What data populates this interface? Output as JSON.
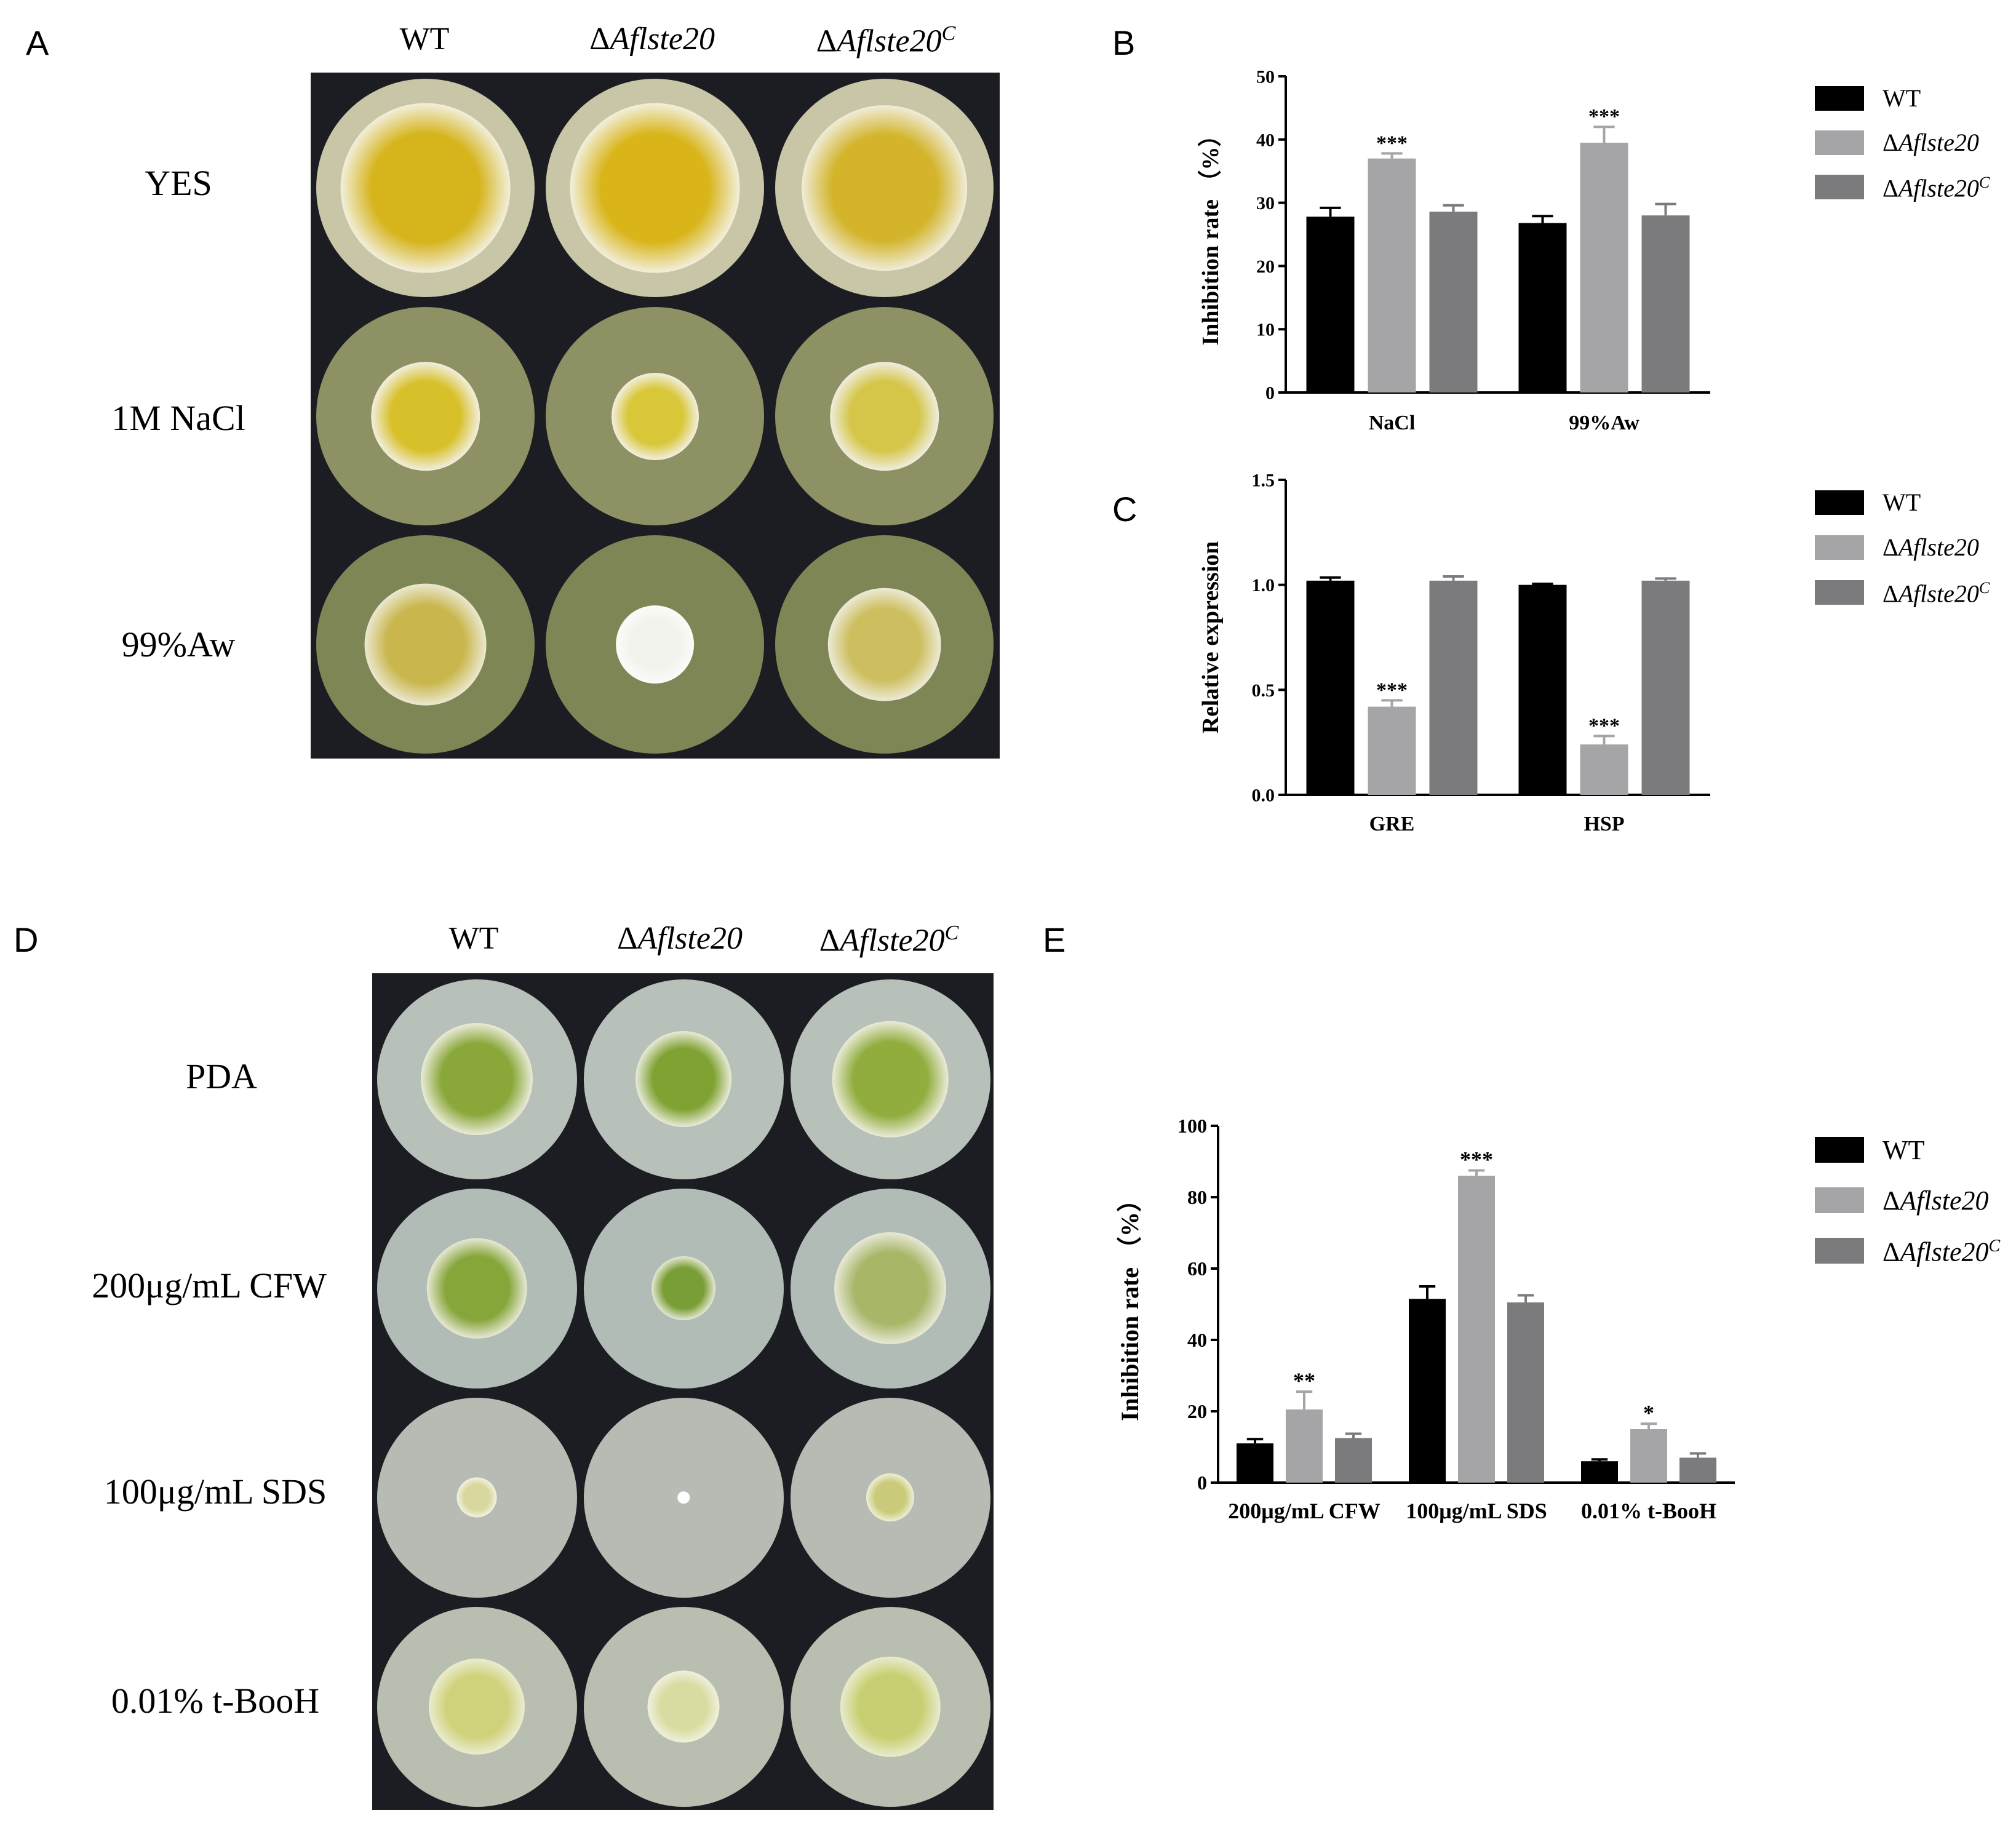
{
  "panels": {
    "A": {
      "letter": "A",
      "columns": [
        {
          "label_main": "WT",
          "label_super": ""
        },
        {
          "label_delta": "Δ",
          "label_italic": "Aflste20",
          "label_super": ""
        },
        {
          "label_delta": "Δ",
          "label_italic": "Aflste20",
          "label_super": "C"
        }
      ],
      "rows": [
        "YES",
        "1M NaCl",
        "99%Aw"
      ]
    },
    "D": {
      "letter": "D",
      "columns": [
        {
          "label_main": "WT",
          "label_super": ""
        },
        {
          "label_delta": "Δ",
          "label_italic": "Aflste20",
          "label_super": ""
        },
        {
          "label_delta": "Δ",
          "label_italic": "Aflste20",
          "label_super": "C"
        }
      ],
      "rows": [
        "PDA",
        "200μg/mL CFW",
        "100μg/mL SDS",
        "0.01% t-BooH"
      ]
    },
    "B_letter": "B",
    "C_letter": "C",
    "E_letter": "E"
  },
  "legend": {
    "wt": "WT",
    "delta": "Δ",
    "mutant": "Aflste20",
    "complement": "Aflste20",
    "complement_super": "C",
    "colors": {
      "wt": "#000000",
      "mutant": "#a5a5a8",
      "complement": "#7b7b7d"
    }
  },
  "chart_data": [
    {
      "id": "B",
      "type": "bar",
      "categories": [
        "NaCl",
        "99%Aw"
      ],
      "series": [
        {
          "name": "WT",
          "values": [
            27.8,
            26.8
          ],
          "errors": [
            1.4,
            1.1
          ]
        },
        {
          "name": "ΔAflste20",
          "values": [
            37.0,
            39.5
          ],
          "errors": [
            0.8,
            2.5
          ]
        },
        {
          "name": "ΔAflste20C",
          "values": [
            28.6,
            28.0
          ],
          "errors": [
            1.0,
            1.8
          ]
        }
      ],
      "significance": [
        {
          "series": 1,
          "category": 0,
          "label": "***"
        },
        {
          "series": 1,
          "category": 1,
          "label": "***"
        }
      ],
      "ylabel": "Inhibition rate （%）",
      "ylim": [
        0,
        50
      ],
      "yticks": [
        0,
        10,
        20,
        30,
        40,
        50
      ]
    },
    {
      "id": "C",
      "type": "bar",
      "categories": [
        "GRE",
        "HSP"
      ],
      "series": [
        {
          "name": "WT",
          "values": [
            1.02,
            1.0
          ],
          "errors": [
            0.015,
            0.005
          ]
        },
        {
          "name": "ΔAflste20",
          "values": [
            0.42,
            0.24
          ],
          "errors": [
            0.03,
            0.04
          ]
        },
        {
          "name": "ΔAflste20C",
          "values": [
            1.02,
            1.02
          ],
          "errors": [
            0.02,
            0.01
          ]
        }
      ],
      "significance": [
        {
          "series": 1,
          "category": 0,
          "label": "***"
        },
        {
          "series": 1,
          "category": 1,
          "label": "***"
        }
      ],
      "ylabel": "Relative expression",
      "ylim": [
        0,
        1.5
      ],
      "yticks": [
        "0.0",
        "0.5",
        "1.0",
        "1.5"
      ]
    },
    {
      "id": "E",
      "type": "bar",
      "categories": [
        "200μg/mL CFW",
        "100μg/mL SDS",
        "0.01% t-BooH"
      ],
      "series": [
        {
          "name": "WT",
          "values": [
            11.0,
            51.5,
            6.0
          ],
          "errors": [
            1.2,
            3.5,
            0.5
          ]
        },
        {
          "name": "ΔAflste20",
          "values": [
            20.5,
            86.0,
            15.0
          ],
          "errors": [
            5.0,
            1.5,
            1.5
          ]
        },
        {
          "name": "ΔAflste20C",
          "values": [
            12.5,
            50.5,
            7.0
          ],
          "errors": [
            1.2,
            2.0,
            1.2
          ]
        }
      ],
      "significance": [
        {
          "series": 1,
          "category": 0,
          "label": "**"
        },
        {
          "series": 1,
          "category": 1,
          "label": "***"
        },
        {
          "series": 1,
          "category": 2,
          "label": "*"
        }
      ],
      "ylabel": "Inhibition rate （%）",
      "ylim": [
        0,
        100
      ],
      "yticks": [
        0,
        20,
        40,
        60,
        80,
        100
      ]
    }
  ],
  "plates": {
    "A": [
      [
        {
          "colony": 0.78,
          "center": "#d6b41c",
          "edge": "#f3f2e6",
          "agar": "#c9c6a8"
        },
        {
          "colony": 0.78,
          "center": "#d9b51a",
          "edge": "#f3f2e6",
          "agar": "#c9c6a8"
        },
        {
          "colony": 0.76,
          "center": "#d3b42a",
          "edge": "#f1efe2",
          "agar": "#c9c6a8"
        }
      ],
      [
        {
          "colony": 0.5,
          "center": "#d8c02a",
          "edge": "#f2f1e8",
          "agar": "#8e9163"
        },
        {
          "colony": 0.4,
          "center": "#d9c73a",
          "edge": "#f2f1e8",
          "agar": "#8e9163"
        },
        {
          "colony": 0.5,
          "center": "#d5c64a",
          "edge": "#f0efe6",
          "agar": "#8e9163"
        }
      ],
      [
        {
          "colony": 0.56,
          "center": "#c9b64c",
          "edge": "#ecead6",
          "agar": "#7f8656"
        },
        {
          "colony": 0.36,
          "center": "#f3f3ee",
          "edge": "#fbfbf8",
          "agar": "#7f8656"
        },
        {
          "colony": 0.52,
          "center": "#cdbf60",
          "edge": "#eeecdc",
          "agar": "#7f8656"
        }
      ]
    ],
    "D": [
      [
        {
          "colony": 0.56,
          "center": "#8aa83a",
          "edge": "#eeeee0",
          "agar": "#b7c0b9"
        },
        {
          "colony": 0.48,
          "center": "#7fa232",
          "edge": "#eeeee0",
          "agar": "#b7c0b9"
        },
        {
          "colony": 0.58,
          "center": "#91ad3e",
          "edge": "#eeeee0",
          "agar": "#b7c0b9"
        }
      ],
      [
        {
          "colony": 0.5,
          "center": "#86a63a",
          "edge": "#ebebdc",
          "agar": "#b2bcb6"
        },
        {
          "colony": 0.32,
          "center": "#7a9e36",
          "edge": "#ebebdc",
          "agar": "#b2bcb6"
        },
        {
          "colony": 0.56,
          "center": "#a7b667",
          "edge": "#ebebdc",
          "agar": "#b2bcb6"
        }
      ],
      [
        {
          "colony": 0.2,
          "center": "#d8d79e",
          "edge": "#f4f3e4",
          "agar": "#b6bcb3"
        },
        {
          "colony": 0.06,
          "center": "#ffffff",
          "edge": "#ffffff",
          "agar": "#b6bcb3"
        },
        {
          "colony": 0.24,
          "center": "#c9cb7a",
          "edge": "#f0f0dc",
          "agar": "#b6bcb3"
        }
      ],
      [
        {
          "colony": 0.48,
          "center": "#cfd27a",
          "edge": "#ecedd4",
          "agar": "#b8bfb0"
        },
        {
          "colony": 0.36,
          "center": "#d9dca0",
          "edge": "#f1f1e1",
          "agar": "#b8bfb0"
        },
        {
          "colony": 0.5,
          "center": "#c8cf72",
          "edge": "#eaecd2",
          "agar": "#b8bfb0"
        }
      ]
    ]
  }
}
